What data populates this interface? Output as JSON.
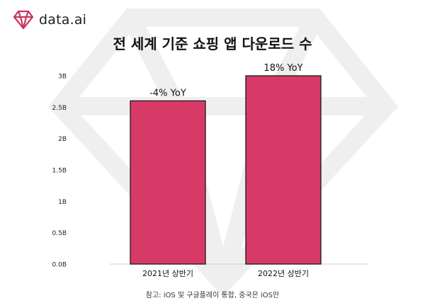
{
  "brand": {
    "name": "data.ai",
    "logo_icon": "diamond-logo-icon"
  },
  "colors": {
    "bar": "#d83a67",
    "text": "#111111",
    "grid": "#d0d0d0",
    "watermark": "#efefef"
  },
  "chart_data": {
    "type": "bar",
    "title": "전 세계 기준 쇼핑 앱 다운로드 수",
    "categories": [
      "2021년 상반기",
      "2022년 상반기"
    ],
    "values": [
      2.6,
      3.0
    ],
    "data_labels": [
      "-4% YoY",
      "18% YoY"
    ],
    "xlabel": "",
    "ylabel": "",
    "ylim": [
      0,
      3
    ],
    "yticks": [
      0,
      0.5,
      1,
      1.5,
      2,
      2.5,
      3
    ],
    "ytick_labels": [
      "0.0B",
      "0.5B",
      "1B",
      "1.5B",
      "2B",
      "2.5B",
      "3B"
    ],
    "grid": false,
    "legend": "none"
  },
  "footnote": "참고: iOS 및 구글플레이 통합, 중국은 iOS만"
}
